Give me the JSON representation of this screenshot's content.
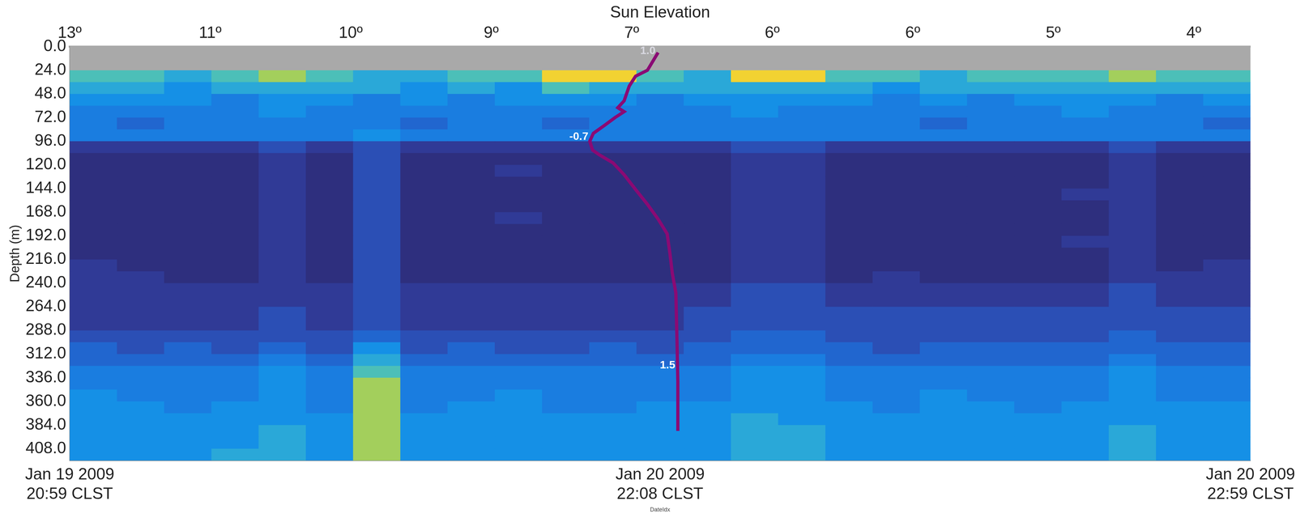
{
  "chart_data": {
    "type": "heatmap",
    "x_label": "DateIdx",
    "x2_label": "Sun Elevation",
    "y_label": "Depth (m)",
    "grid": false,
    "xlim": [
      0,
      100
    ],
    "xticks": [
      {
        "value": 0,
        "label": "Jan 19 2009\n20:59 CLST"
      },
      {
        "value": 50,
        "label": "Jan 20 2009\n22:08 CLST"
      },
      {
        "value": 100,
        "label": "Jan 20 2009\n22:59 CLST"
      }
    ],
    "x2lim": [
      0,
      100
    ],
    "x2ticks": [
      {
        "value": 0,
        "label": "13º"
      },
      {
        "value": 11.9,
        "label": "11º"
      },
      {
        "value": 23.8,
        "label": "10º"
      },
      {
        "value": 35.7,
        "label": "9º"
      },
      {
        "value": 47.6,
        "label": "7º"
      },
      {
        "value": 59.5,
        "label": "6º"
      },
      {
        "value": 71.4,
        "label": "6º"
      },
      {
        "value": 83.3,
        "label": "5º"
      },
      {
        "value": 95.2,
        "label": "4º"
      }
    ],
    "ylim": [
      0,
      420
    ],
    "yticks": [
      {
        "value": 0,
        "label": "0.0"
      },
      {
        "value": 24,
        "label": "24.0"
      },
      {
        "value": 48,
        "label": "48.0"
      },
      {
        "value": 72,
        "label": "72.0"
      },
      {
        "value": 96,
        "label": "96.0"
      },
      {
        "value": 120,
        "label": "120.0"
      },
      {
        "value": 144,
        "label": "144.0"
      },
      {
        "value": 168,
        "label": "168.0"
      },
      {
        "value": 192,
        "label": "192.0"
      },
      {
        "value": 216,
        "label": "216.0"
      },
      {
        "value": 240,
        "label": "240.0"
      },
      {
        "value": 264,
        "label": "264.0"
      },
      {
        "value": 288,
        "label": "288.0"
      },
      {
        "value": 312,
        "label": "312.0"
      },
      {
        "value": 336,
        "label": "336.0"
      },
      {
        "value": 360,
        "label": "360.0"
      },
      {
        "value": 384,
        "label": "384.0"
      },
      {
        "value": 408,
        "label": "408.0"
      }
    ],
    "heatmap": {
      "x_edges": [
        0,
        4,
        8,
        12,
        16,
        20,
        24,
        28,
        32,
        36,
        40,
        44,
        48,
        52,
        56,
        60,
        64,
        68,
        72,
        76,
        80,
        84,
        88,
        92,
        96,
        100
      ],
      "y_edges": [
        0,
        12,
        24,
        36,
        48,
        60,
        72,
        84,
        96,
        108,
        120,
        132,
        144,
        156,
        168,
        180,
        192,
        204,
        216,
        228,
        240,
        252,
        264,
        276,
        288,
        300,
        312,
        324,
        336,
        348,
        360,
        372,
        384,
        396,
        408,
        420
      ],
      "zlim": [
        0,
        9
      ],
      "colors": [
        "#2e2f7e",
        "#303a96",
        "#2b4fb5",
        "#2166cf",
        "#1a7de0",
        "#1590e6",
        "#2aa8d8",
        "#4cbfb8",
        "#a3cf5c",
        "#f2d232"
      ],
      "z": [
        [
          null,
          null,
          null,
          null,
          null,
          null,
          null,
          null,
          null,
          null,
          null,
          null,
          null,
          null,
          null,
          null,
          null,
          null,
          null,
          null,
          null,
          null,
          null,
          null,
          null
        ],
        [
          null,
          null,
          null,
          null,
          null,
          null,
          null,
          null,
          null,
          null,
          null,
          null,
          null,
          null,
          null,
          null,
          null,
          null,
          null,
          null,
          null,
          null,
          null,
          null,
          null
        ],
        [
          7,
          7,
          6,
          7,
          8,
          7,
          6,
          6,
          7,
          7,
          9,
          9,
          7,
          6,
          9,
          9,
          7,
          7,
          6,
          7,
          7,
          7,
          8,
          7,
          7
        ],
        [
          6,
          6,
          5,
          6,
          6,
          6,
          6,
          5,
          6,
          5,
          7,
          6,
          6,
          6,
          6,
          6,
          6,
          5,
          6,
          6,
          6,
          6,
          6,
          6,
          6
        ],
        [
          5,
          5,
          5,
          4,
          5,
          5,
          4,
          5,
          4,
          5,
          5,
          5,
          4,
          5,
          5,
          5,
          5,
          4,
          5,
          4,
          5,
          5,
          5,
          4,
          5
        ],
        [
          4,
          4,
          4,
          4,
          5,
          4,
          4,
          4,
          4,
          4,
          4,
          4,
          4,
          4,
          5,
          4,
          4,
          4,
          4,
          4,
          4,
          5,
          4,
          4,
          4
        ],
        [
          4,
          3,
          4,
          4,
          4,
          4,
          4,
          3,
          4,
          4,
          3,
          4,
          4,
          4,
          4,
          4,
          4,
          4,
          3,
          4,
          4,
          4,
          4,
          4,
          3
        ],
        [
          4,
          4,
          4,
          4,
          4,
          4,
          5,
          4,
          4,
          4,
          4,
          4,
          4,
          4,
          4,
          4,
          4,
          4,
          4,
          4,
          4,
          4,
          4,
          4,
          4
        ],
        [
          1,
          1,
          1,
          1,
          2,
          1,
          2,
          1,
          1,
          1,
          1,
          1,
          1,
          1,
          2,
          2,
          1,
          1,
          1,
          1,
          1,
          1,
          2,
          1,
          1
        ],
        [
          0,
          0,
          0,
          0,
          1,
          0,
          2,
          0,
          0,
          0,
          0,
          0,
          0,
          0,
          1,
          1,
          0,
          0,
          0,
          0,
          0,
          0,
          1,
          0,
          0
        ],
        [
          0,
          0,
          0,
          0,
          1,
          0,
          2,
          0,
          0,
          1,
          0,
          0,
          0,
          0,
          1,
          1,
          0,
          0,
          0,
          0,
          0,
          0,
          1,
          0,
          0
        ],
        [
          0,
          0,
          0,
          0,
          1,
          0,
          2,
          0,
          0,
          0,
          0,
          0,
          0,
          0,
          1,
          1,
          0,
          0,
          0,
          0,
          0,
          0,
          1,
          0,
          0
        ],
        [
          0,
          0,
          0,
          0,
          1,
          0,
          2,
          0,
          0,
          0,
          0,
          0,
          0,
          0,
          1,
          1,
          0,
          0,
          0,
          0,
          0,
          1,
          1,
          0,
          0
        ],
        [
          0,
          0,
          0,
          0,
          1,
          0,
          2,
          0,
          0,
          0,
          0,
          0,
          0,
          0,
          1,
          1,
          0,
          0,
          0,
          0,
          0,
          0,
          1,
          0,
          0
        ],
        [
          0,
          0,
          0,
          0,
          1,
          0,
          2,
          0,
          0,
          1,
          0,
          0,
          0,
          0,
          1,
          1,
          0,
          0,
          0,
          0,
          0,
          0,
          1,
          0,
          0
        ],
        [
          0,
          0,
          0,
          0,
          1,
          0,
          2,
          0,
          0,
          0,
          0,
          0,
          0,
          0,
          1,
          1,
          0,
          0,
          0,
          0,
          0,
          0,
          1,
          0,
          0
        ],
        [
          0,
          0,
          0,
          0,
          1,
          0,
          2,
          0,
          0,
          0,
          0,
          0,
          0,
          0,
          1,
          1,
          0,
          0,
          0,
          0,
          0,
          1,
          1,
          0,
          0
        ],
        [
          0,
          0,
          0,
          0,
          1,
          0,
          2,
          0,
          0,
          0,
          0,
          0,
          0,
          0,
          1,
          1,
          0,
          0,
          0,
          0,
          0,
          0,
          1,
          0,
          0
        ],
        [
          1,
          0,
          0,
          0,
          1,
          0,
          2,
          0,
          0,
          0,
          0,
          0,
          0,
          0,
          1,
          1,
          0,
          0,
          0,
          0,
          0,
          0,
          1,
          0,
          1
        ],
        [
          1,
          1,
          0,
          0,
          1,
          0,
          2,
          0,
          0,
          0,
          0,
          0,
          0,
          0,
          1,
          1,
          0,
          1,
          0,
          0,
          0,
          0,
          1,
          1,
          1
        ],
        [
          1,
          1,
          1,
          1,
          1,
          1,
          2,
          1,
          1,
          1,
          1,
          1,
          1,
          1,
          2,
          2,
          1,
          1,
          1,
          1,
          1,
          1,
          2,
          1,
          1
        ],
        [
          1,
          1,
          1,
          1,
          1,
          1,
          2,
          1,
          1,
          1,
          1,
          1,
          1,
          1,
          2,
          2,
          1,
          1,
          1,
          1,
          1,
          1,
          2,
          1,
          1
        ],
        [
          1,
          1,
          1,
          1,
          2,
          1,
          2,
          1,
          1,
          1,
          1,
          1,
          1,
          2,
          2,
          2,
          2,
          2,
          2,
          2,
          2,
          2,
          2,
          2,
          2
        ],
        [
          1,
          1,
          1,
          1,
          2,
          1,
          2,
          1,
          1,
          1,
          1,
          1,
          1,
          2,
          2,
          2,
          2,
          2,
          2,
          2,
          2,
          2,
          2,
          2,
          2
        ],
        [
          2,
          2,
          2,
          2,
          2,
          2,
          3,
          2,
          2,
          2,
          2,
          2,
          2,
          2,
          3,
          3,
          2,
          2,
          2,
          2,
          2,
          2,
          3,
          2,
          2
        ],
        [
          3,
          2,
          3,
          2,
          3,
          2,
          5,
          2,
          3,
          2,
          2,
          3,
          2,
          3,
          3,
          3,
          3,
          2,
          3,
          3,
          3,
          3,
          3,
          3,
          3
        ],
        [
          3,
          3,
          3,
          3,
          4,
          3,
          6,
          3,
          3,
          3,
          3,
          3,
          3,
          3,
          4,
          4,
          3,
          3,
          3,
          3,
          3,
          3,
          4,
          3,
          3
        ],
        [
          4,
          4,
          4,
          4,
          5,
          4,
          7,
          4,
          4,
          4,
          4,
          4,
          4,
          4,
          5,
          5,
          4,
          4,
          4,
          4,
          4,
          4,
          5,
          4,
          4
        ],
        [
          4,
          4,
          4,
          4,
          5,
          4,
          8,
          4,
          4,
          4,
          4,
          4,
          4,
          4,
          5,
          5,
          4,
          4,
          4,
          4,
          4,
          4,
          5,
          4,
          4
        ],
        [
          5,
          4,
          4,
          4,
          5,
          4,
          8,
          4,
          4,
          5,
          4,
          4,
          4,
          4,
          5,
          5,
          4,
          4,
          5,
          4,
          4,
          4,
          5,
          4,
          4
        ],
        [
          5,
          5,
          4,
          5,
          5,
          4,
          8,
          4,
          5,
          5,
          4,
          4,
          5,
          5,
          5,
          5,
          5,
          4,
          5,
          5,
          4,
          5,
          5,
          5,
          5
        ],
        [
          5,
          5,
          5,
          5,
          5,
          5,
          8,
          5,
          5,
          5,
          5,
          5,
          5,
          5,
          6,
          5,
          5,
          5,
          5,
          5,
          5,
          5,
          5,
          5,
          5
        ],
        [
          5,
          5,
          5,
          5,
          6,
          5,
          8,
          5,
          5,
          5,
          5,
          5,
          5,
          5,
          6,
          6,
          5,
          5,
          5,
          5,
          5,
          5,
          6,
          5,
          5
        ],
        [
          5,
          5,
          5,
          5,
          6,
          5,
          8,
          5,
          5,
          5,
          5,
          5,
          5,
          5,
          6,
          6,
          5,
          5,
          5,
          5,
          5,
          5,
          6,
          5,
          5
        ],
        [
          5,
          5,
          5,
          6,
          6,
          5,
          8,
          5,
          5,
          5,
          5,
          5,
          5,
          5,
          6,
          6,
          5,
          5,
          5,
          5,
          5,
          5,
          6,
          5,
          5
        ]
      ]
    },
    "profile": {
      "type": "line",
      "color": "#8a0a74",
      "xlim": [
        -13.9,
        16.0
      ],
      "x": [
        1.0,
        0.73,
        0.43,
        0.27,
        0.2,
        0.14,
        -0.02,
        0.14,
        -0.09,
        -0.36,
        -0.64,
        -0.73,
        -0.66,
        -0.48,
        -0.14,
        0.14,
        0.43,
        0.73,
        1.0,
        1.23,
        1.3,
        1.36,
        1.45,
        1.48,
        1.5,
        1.5,
        1.5
      ],
      "y": [
        6,
        24,
        30,
        40,
        48,
        55,
        62,
        66,
        72,
        80,
        88,
        96,
        105,
        110,
        118,
        130,
        145,
        160,
        175,
        190,
        210,
        230,
        250,
        300,
        340,
        372,
        390
      ]
    },
    "annotations": [
      {
        "text": "1.0",
        "x": 1.0,
        "y": 0
      },
      {
        "text": "-0.7",
        "x": -0.7,
        "y": 87
      },
      {
        "text": "1.5",
        "x": 1.5,
        "y": 319
      }
    ]
  }
}
